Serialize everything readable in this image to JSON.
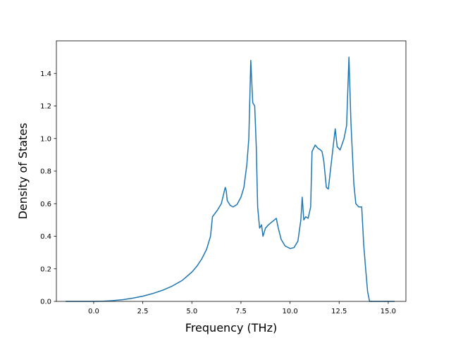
{
  "chart_data": {
    "type": "line",
    "title": "",
    "xlabel": "Frequency (THz)",
    "ylabel": "Density of States",
    "xlim": [
      -1.9,
      15.9
    ],
    "ylim": [
      0.0,
      1.6
    ],
    "x_ticks": [
      0.0,
      2.5,
      5.0,
      7.5,
      10.0,
      12.5,
      15.0
    ],
    "x_tick_labels": [
      "0.0",
      "2.5",
      "5.0",
      "7.5",
      "10.0",
      "12.5",
      "15.0"
    ],
    "y_ticks": [
      0.0,
      0.2,
      0.4,
      0.6,
      0.8,
      1.0,
      1.2,
      1.4
    ],
    "y_tick_labels": [
      "0.0",
      "0.2",
      "0.4",
      "0.6",
      "0.8",
      "1.0",
      "1.2",
      "1.4"
    ],
    "grid": false,
    "legend": "none",
    "series": [
      {
        "color": "#1f77b4",
        "points": [
          [
            -1.4,
            0.0
          ],
          [
            0.0,
            0.0
          ],
          [
            0.5,
            0.001
          ],
          [
            1.0,
            0.005
          ],
          [
            1.5,
            0.011
          ],
          [
            2.0,
            0.02
          ],
          [
            2.5,
            0.032
          ],
          [
            3.0,
            0.048
          ],
          [
            3.5,
            0.068
          ],
          [
            4.0,
            0.094
          ],
          [
            4.5,
            0.128
          ],
          [
            5.0,
            0.18
          ],
          [
            5.25,
            0.215
          ],
          [
            5.5,
            0.26
          ],
          [
            5.75,
            0.32
          ],
          [
            5.95,
            0.4
          ],
          [
            6.05,
            0.52
          ],
          [
            6.3,
            0.56
          ],
          [
            6.5,
            0.6
          ],
          [
            6.6,
            0.65
          ],
          [
            6.7,
            0.7
          ],
          [
            6.75,
            0.68
          ],
          [
            6.8,
            0.62
          ],
          [
            6.95,
            0.59
          ],
          [
            7.1,
            0.58
          ],
          [
            7.3,
            0.595
          ],
          [
            7.5,
            0.64
          ],
          [
            7.65,
            0.7
          ],
          [
            7.8,
            0.84
          ],
          [
            7.9,
            1.0
          ],
          [
            8.0,
            1.48
          ],
          [
            8.1,
            1.22
          ],
          [
            8.2,
            1.2
          ],
          [
            8.28,
            0.95
          ],
          [
            8.35,
            0.58
          ],
          [
            8.45,
            0.45
          ],
          [
            8.55,
            0.47
          ],
          [
            8.62,
            0.4
          ],
          [
            8.75,
            0.45
          ],
          [
            8.9,
            0.47
          ],
          [
            9.1,
            0.49
          ],
          [
            9.3,
            0.51
          ],
          [
            9.4,
            0.45
          ],
          [
            9.55,
            0.38
          ],
          [
            9.75,
            0.34
          ],
          [
            10.0,
            0.325
          ],
          [
            10.2,
            0.33
          ],
          [
            10.4,
            0.37
          ],
          [
            10.55,
            0.5
          ],
          [
            10.62,
            0.64
          ],
          [
            10.7,
            0.5
          ],
          [
            10.8,
            0.52
          ],
          [
            10.92,
            0.51
          ],
          [
            11.05,
            0.58
          ],
          [
            11.12,
            0.92
          ],
          [
            11.28,
            0.96
          ],
          [
            11.42,
            0.94
          ],
          [
            11.55,
            0.93
          ],
          [
            11.63,
            0.92
          ],
          [
            11.72,
            0.86
          ],
          [
            11.85,
            0.7
          ],
          [
            11.95,
            0.69
          ],
          [
            12.1,
            0.85
          ],
          [
            12.3,
            1.06
          ],
          [
            12.4,
            0.95
          ],
          [
            12.55,
            0.93
          ],
          [
            12.75,
            1.0
          ],
          [
            12.88,
            1.08
          ],
          [
            13.0,
            1.5
          ],
          [
            13.1,
            1.1
          ],
          [
            13.25,
            0.72
          ],
          [
            13.35,
            0.6
          ],
          [
            13.5,
            0.58
          ],
          [
            13.65,
            0.58
          ],
          [
            13.75,
            0.35
          ],
          [
            13.85,
            0.2
          ],
          [
            13.95,
            0.06
          ],
          [
            14.05,
            0.0
          ],
          [
            15.3,
            0.0
          ]
        ]
      }
    ]
  }
}
